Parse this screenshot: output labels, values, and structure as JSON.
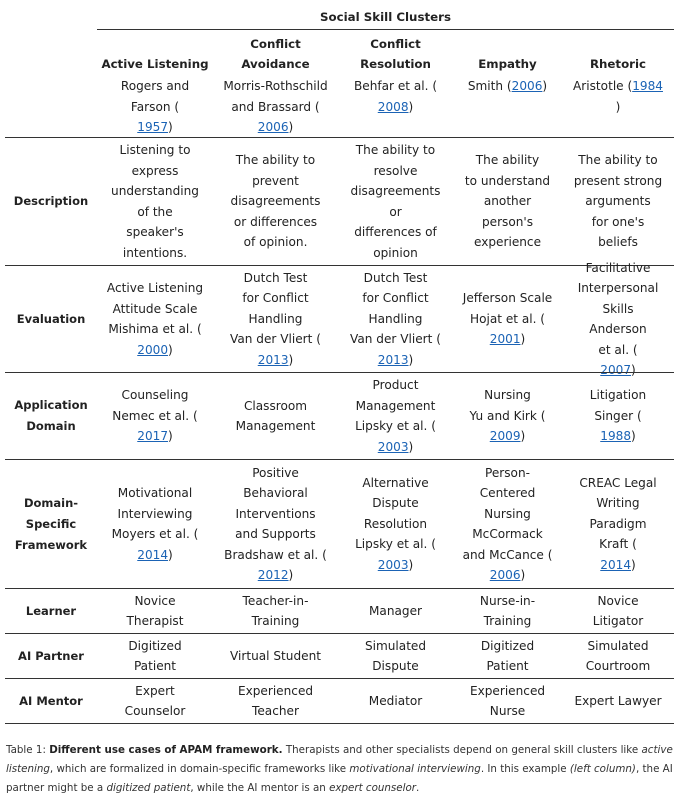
{
  "group_header": "Social Skill Clusters",
  "columns": [
    {
      "name": [
        "Active Listening"
      ],
      "ref_text": [
        "Rogers and",
        "Farson ("
      ],
      "ref_year": "1957",
      "ref_close": ")"
    },
    {
      "name": [
        "Conflict",
        "Avoidance"
      ],
      "ref_text": [
        "Morris-Rothschild",
        "and Brassard ("
      ],
      "ref_year": "2006",
      "ref_close": ")"
    },
    {
      "name": [
        "Conflict",
        "Resolution"
      ],
      "ref_text": [
        "Behfar et al. ("
      ],
      "ref_year": "2008",
      "ref_close": ")"
    },
    {
      "name": [
        "Empathy"
      ],
      "ref_text": [
        "Smith ("
      ],
      "ref_year": "2006",
      "ref_close": ")"
    },
    {
      "name": [
        "Rhetoric"
      ],
      "ref_text": [
        "Aristotle ("
      ],
      "ref_year": "1984",
      "ref_close": ")"
    }
  ],
  "rows": [
    {
      "label": [
        "Description"
      ],
      "cells": [
        [
          "Listening to",
          "express",
          "understanding",
          "of the",
          "speaker's",
          "intentions."
        ],
        [
          "The ability to",
          "prevent",
          "disagreements",
          "or differences",
          "of opinion."
        ],
        [
          "The ability to",
          "resolve",
          "disagreements",
          "or",
          "differences of",
          "opinion"
        ],
        [
          "The ability",
          "to understand",
          "another",
          "person's",
          "experience"
        ],
        [
          "The ability to",
          "present strong",
          "arguments",
          "for one's",
          "beliefs"
        ]
      ]
    },
    {
      "label": [
        "Evaluation"
      ],
      "cells": [
        [
          "Active Listening",
          "Attitude Scale",
          "Mishima et al. (",
          "@2000",
          ")"
        ],
        [
          "Dutch Test",
          "for Conflict",
          "Handling",
          "Van der Vliert (",
          "@2013",
          ")"
        ],
        [
          "Dutch Test",
          "for Conflict",
          "Handling",
          "Van der Vliert (",
          "@2013",
          ")"
        ],
        [
          "Jefferson Scale",
          "Hojat et al. (",
          "@2001",
          ")"
        ],
        [
          "Facilitative",
          "Interpersonal",
          "Skills",
          "Anderson",
          "et al. (",
          "@2007",
          ")"
        ]
      ]
    },
    {
      "label": [
        "Application",
        "Domain"
      ],
      "cells": [
        [
          "Counseling",
          "Nemec et al. (",
          "@2017",
          ")"
        ],
        [
          "Classroom",
          "Management"
        ],
        [
          "Product",
          "Management",
          "Lipsky et al. (",
          "@2003",
          ")"
        ],
        [
          "Nursing",
          "Yu and Kirk (",
          "@2009",
          ")"
        ],
        [
          "Litigation",
          "Singer (",
          "@1988",
          ")"
        ]
      ]
    },
    {
      "label": [
        "Domain-",
        "Specific",
        "Framework"
      ],
      "cells": [
        [
          "Motivational",
          "Interviewing",
          "Moyers et al. (",
          "@2014",
          ")"
        ],
        [
          "Positive",
          "Behavioral",
          "Interventions",
          "and Supports",
          "Bradshaw et al. (",
          "@2012",
          ")"
        ],
        [
          "Alternative",
          "Dispute",
          "Resolution",
          "Lipsky et al. (",
          "@2003",
          ")"
        ],
        [
          "Person-",
          "Centered",
          "Nursing",
          "McCormack",
          "and McCance (",
          "@2006",
          ")"
        ],
        [
          "CREAC Legal",
          "Writing",
          "Paradigm",
          "Kraft (",
          "@2014",
          ")"
        ]
      ]
    },
    {
      "label": [
        "Learner"
      ],
      "cells": [
        [
          "Novice",
          "Therapist"
        ],
        [
          "Teacher-in-",
          "Training"
        ],
        [
          "Manager"
        ],
        [
          "Nurse-in-",
          "Training"
        ],
        [
          "Novice",
          "Litigator"
        ]
      ]
    },
    {
      "label": [
        "AI Partner"
      ],
      "cells": [
        [
          "Digitized",
          "Patient"
        ],
        [
          "Virtual Student"
        ],
        [
          "Simulated",
          "Dispute"
        ],
        [
          "Digitized",
          "Patient"
        ],
        [
          "Simulated",
          "Courtroom"
        ]
      ]
    },
    {
      "label": [
        "AI Mentor"
      ],
      "cells": [
        [
          "Expert",
          "Counselor"
        ],
        [
          "Experienced",
          "Teacher"
        ],
        [
          "Mediator"
        ],
        [
          "Experienced",
          "Nurse"
        ],
        [
          "Expert Lawyer"
        ]
      ]
    }
  ],
  "caption": {
    "prefix": "Table 1: ",
    "bold": "Different use cases of APAM framework.",
    "t1": " Therapists and other specialists depend on general skill clusters like ",
    "i1": "active listening",
    "t2": ", which are formalized in domain-specific frameworks like ",
    "i2": "motivational interviewing",
    "t3": ". In this example ",
    "i3": "(left column)",
    "t4": ", the AI partner might be a ",
    "i4": "digitized patient",
    "t5": ", while the AI mentor is an ",
    "i5": "expert counselor",
    "t6": "."
  }
}
